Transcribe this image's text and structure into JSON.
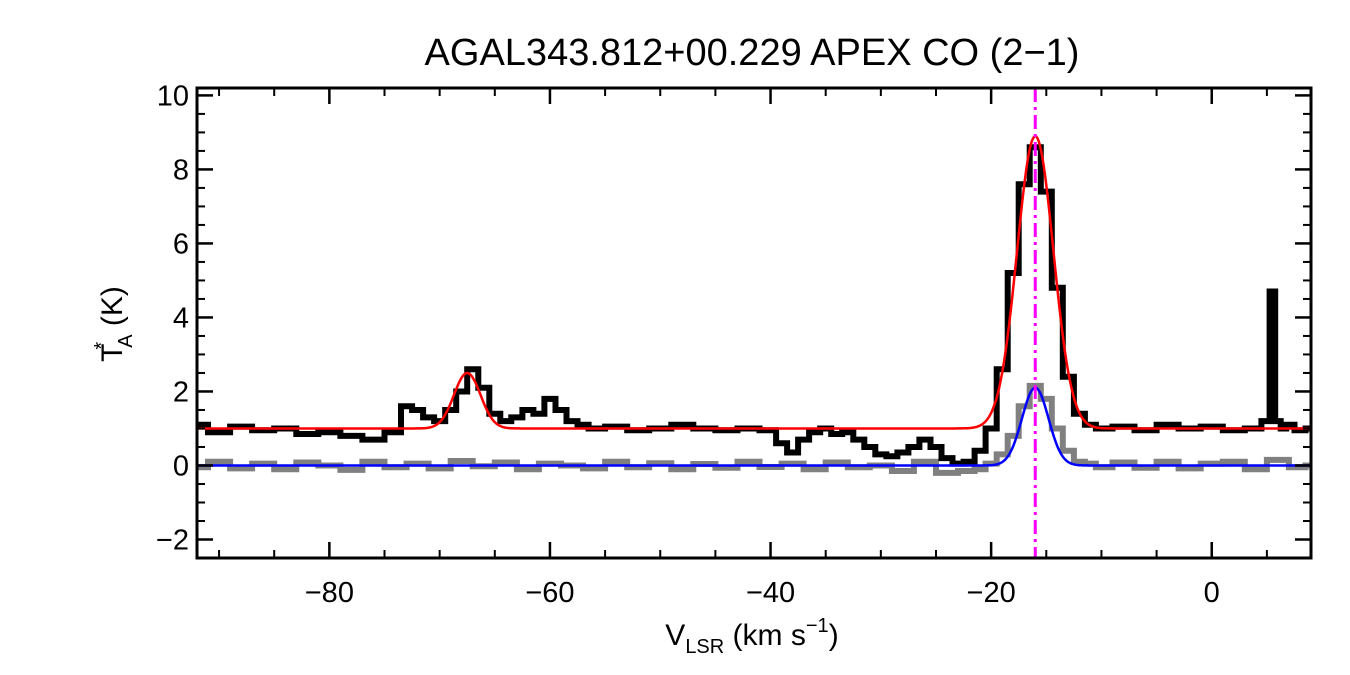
{
  "chart_data": {
    "type": "line",
    "title": "AGAL343.812+00.229  APEX CO (2−1)",
    "xlabel": {
      "main": "V",
      "sub": "LSR",
      "rest": " (km s",
      "sup": "−1",
      "close": ")"
    },
    "ylabel": {
      "main": "T",
      "sup": "*",
      "sub": "A",
      "rest": " (K)"
    },
    "xlim": [
      -92,
      9
    ],
    "ylim": [
      -2.5,
      10.2
    ],
    "xticks": [
      -80,
      -60,
      -40,
      -20,
      0
    ],
    "xtick_labels": [
      "−80",
      "−60",
      "−40",
      "−20",
      "0"
    ],
    "yticks": [
      -2,
      0,
      2,
      4,
      6,
      8,
      10
    ],
    "ytick_labels": [
      "−2",
      "0",
      "2",
      "4",
      "6",
      "8",
      "10"
    ],
    "xminor_step": 5,
    "yminor_step": 0.5,
    "grid": false,
    "vline": {
      "x": -16.0,
      "color": "#ff00ff",
      "style": "dash-dot"
    },
    "series": [
      {
        "style": "step",
        "color": "#808080",
        "x": [
          -92,
          -90,
          -88,
          -86,
          -84,
          -82,
          -80,
          -78,
          -76,
          -74,
          -72,
          -70,
          -68,
          -66,
          -64,
          -62,
          -60,
          -58,
          -56,
          -54,
          -52,
          -50,
          -48,
          -46,
          -44,
          -42,
          -40,
          -38,
          -36,
          -34,
          -32,
          -30,
          -28,
          -26,
          -24,
          -22,
          -21,
          -20,
          -19,
          -18,
          -17,
          -16,
          -15,
          -14,
          -13,
          -12,
          -11,
          -10,
          -8,
          -6,
          -4,
          -2,
          0,
          2,
          4,
          6,
          8,
          9
        ],
        "y": [
          -0.05,
          0.1,
          -0.08,
          0.05,
          -0.1,
          0.08,
          0.0,
          -0.12,
          0.1,
          -0.05,
          0.05,
          -0.08,
          0.12,
          -0.02,
          0.08,
          -0.1,
          0.05,
          0.0,
          -0.08,
          0.1,
          -0.05,
          0.06,
          -0.1,
          0.04,
          -0.06,
          0.1,
          -0.04,
          0.05,
          -0.1,
          0.08,
          -0.05,
          0.0,
          -0.15,
          0.1,
          -0.2,
          -0.15,
          -0.1,
          0.05,
          0.3,
          0.8,
          1.6,
          2.15,
          1.8,
          1.0,
          0.4,
          0.1,
          0.05,
          -0.05,
          0.08,
          -0.06,
          0.1,
          -0.08,
          0.05,
          0.1,
          -0.1,
          0.15,
          -0.05,
          0.0
        ]
      },
      {
        "style": "step",
        "color": "#000000",
        "x": [
          -92,
          -90,
          -88,
          -86,
          -84,
          -82,
          -80,
          -78,
          -76,
          -74,
          -73,
          -72,
          -71,
          -70,
          -69,
          -68,
          -67,
          -66,
          -65,
          -64,
          -63,
          -62,
          -61,
          -60,
          -59,
          -58,
          -57,
          -56,
          -54,
          -52,
          -50,
          -48,
          -46,
          -44,
          -42,
          -40,
          -39,
          -38,
          -37,
          -36,
          -35,
          -34,
          -33,
          -32,
          -31,
          -30,
          -29,
          -28,
          -27,
          -26,
          -25,
          -24,
          -23,
          -22,
          -21,
          -20,
          -19,
          -18,
          -17,
          -16,
          -15,
          -14,
          -13,
          -12,
          -11,
          -10,
          -8,
          -6,
          -4,
          -2,
          0,
          2,
          4,
          5,
          5.5,
          6,
          6.5,
          7,
          8,
          9
        ],
        "y": [
          1.1,
          0.9,
          1.05,
          0.95,
          1.0,
          0.85,
          0.9,
          0.8,
          0.7,
          0.9,
          1.6,
          1.5,
          1.3,
          1.2,
          1.5,
          2.0,
          2.6,
          2.1,
          1.4,
          1.2,
          1.3,
          1.5,
          1.4,
          1.8,
          1.5,
          1.2,
          1.1,
          1.0,
          1.05,
          0.95,
          1.0,
          1.1,
          1.0,
          0.95,
          1.0,
          0.95,
          0.6,
          0.35,
          0.7,
          0.9,
          1.0,
          0.85,
          0.9,
          0.7,
          0.5,
          0.3,
          0.25,
          0.35,
          0.5,
          0.7,
          0.5,
          0.2,
          0.05,
          0.1,
          0.4,
          1.0,
          2.6,
          5.2,
          7.6,
          8.6,
          7.4,
          4.8,
          2.4,
          1.4,
          1.1,
          1.0,
          1.05,
          0.95,
          1.1,
          1.0,
          1.05,
          0.95,
          1.0,
          1.2,
          4.7,
          1.2,
          1.0,
          1.1,
          0.95,
          1.0
        ]
      },
      {
        "style": "gaussian",
        "color": "#ff0000",
        "baseline": 1.0,
        "components": [
          {
            "amp": 1.5,
            "center": -67.5,
            "sigma": 1.2
          },
          {
            "amp": 7.9,
            "center": -16.0,
            "sigma": 1.65
          }
        ]
      },
      {
        "style": "gaussian",
        "color": "#0000ff",
        "baseline": 0.0,
        "components": [
          {
            "amp": 2.1,
            "center": -16.0,
            "sigma": 1.2
          }
        ]
      }
    ]
  }
}
